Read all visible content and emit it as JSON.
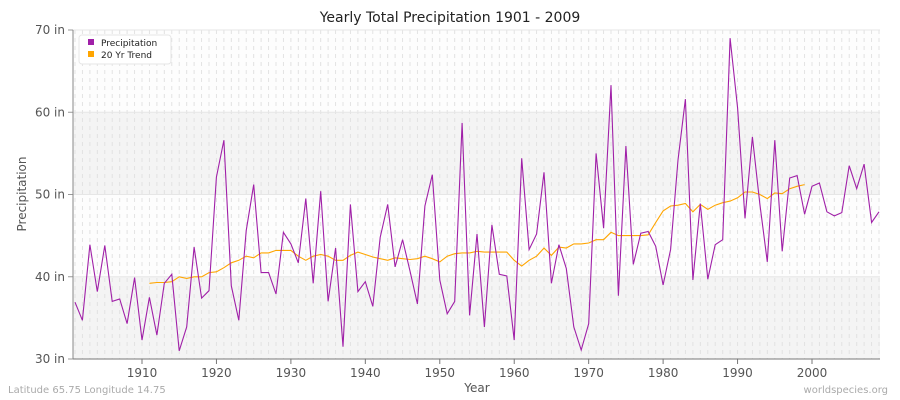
{
  "chart_data": {
    "type": "line",
    "title": "Yearly Total Precipitation 1901 - 2009",
    "xlabel": "Year",
    "ylabel": "Precipitation",
    "xlim": [
      1901,
      2009
    ],
    "ylim": [
      30,
      70
    ],
    "xticks": [
      1910,
      1920,
      1930,
      1940,
      1950,
      1960,
      1970,
      1980,
      1990,
      2000
    ],
    "yticks": [
      {
        "v": 30,
        "label": "30 in"
      },
      {
        "v": 40,
        "label": "40 in"
      },
      {
        "v": 50,
        "label": "50 in"
      },
      {
        "v": 60,
        "label": "60 in"
      },
      {
        "v": 70,
        "label": "70 in"
      }
    ],
    "legend_position": "top-left",
    "series": [
      {
        "name": "Precipitation",
        "color": "#a020a8",
        "start": 1901,
        "values": [
          36.9,
          34.7,
          43.9,
          38.2,
          43.8,
          37.0,
          37.3,
          34.3,
          39.9,
          32.3,
          37.5,
          32.9,
          39.2,
          40.3,
          31.0,
          33.9,
          43.6,
          37.4,
          38.3,
          52.1,
          56.6,
          38.9,
          34.7,
          45.6,
          51.2,
          40.5,
          40.5,
          37.9,
          45.4,
          44.0,
          41.7,
          49.5,
          39.2,
          50.4,
          37.0,
          43.5,
          31.5,
          48.8,
          38.2,
          39.4,
          36.4,
          44.8,
          48.8,
          41.2,
          44.5,
          40.7,
          36.7,
          48.6,
          52.4,
          39.6,
          35.5,
          37.0,
          58.7,
          35.3,
          45.2,
          33.9,
          46.3,
          40.3,
          40.1,
          32.3,
          54.4,
          43.3,
          45.2,
          52.7,
          39.2,
          43.9,
          41.0,
          33.9,
          31.1,
          34.3,
          55.0,
          45.9,
          63.3,
          37.7,
          55.9,
          41.5,
          45.3,
          45.5,
          43.7,
          39.0,
          43.3,
          54.2,
          61.6,
          39.6,
          48.9,
          39.7,
          43.9,
          44.5,
          69.0,
          60.5,
          47.1,
          57.0,
          48.8,
          41.8,
          56.6,
          43.1,
          52.0,
          52.3,
          47.6,
          51.0,
          51.4,
          47.9,
          47.4,
          47.8,
          53.5,
          50.7,
          53.7,
          46.6,
          47.9
        ]
      },
      {
        "name": "20 Yr Trend",
        "color": "#ffa500",
        "start": 1911,
        "values": [
          39.2,
          39.3,
          39.3,
          39.4,
          40.0,
          39.8,
          40.0,
          40.0,
          40.5,
          40.6,
          41.1,
          41.7,
          42.0,
          42.5,
          42.3,
          42.9,
          42.9,
          43.2,
          43.2,
          43.2,
          42.5,
          42.0,
          42.5,
          42.7,
          42.5,
          42.0,
          42.0,
          42.6,
          43.0,
          42.7,
          42.4,
          42.2,
          42.0,
          42.3,
          42.2,
          42.1,
          42.2,
          42.5,
          42.2,
          41.8,
          42.5,
          42.8,
          42.9,
          42.9,
          43.1,
          43.0,
          43.0,
          43.0,
          43.0,
          42.0,
          41.3,
          42.0,
          42.5,
          43.5,
          42.6,
          43.6,
          43.5,
          44.0,
          44.0,
          44.1,
          44.5,
          44.5,
          45.4,
          45.0,
          45.0,
          45.0,
          45.0,
          45.1,
          46.6,
          48.0,
          48.6,
          48.7,
          48.9,
          47.9,
          48.8,
          48.2,
          48.7,
          49.0,
          49.2,
          49.6,
          50.3,
          50.3,
          50.0,
          49.5,
          50.2,
          50.1,
          50.7,
          51.0,
          51.2
        ]
      }
    ]
  },
  "footer": {
    "left": "Latitude 65.75 Longitude 14.75",
    "right": "worldspecies.org"
  }
}
